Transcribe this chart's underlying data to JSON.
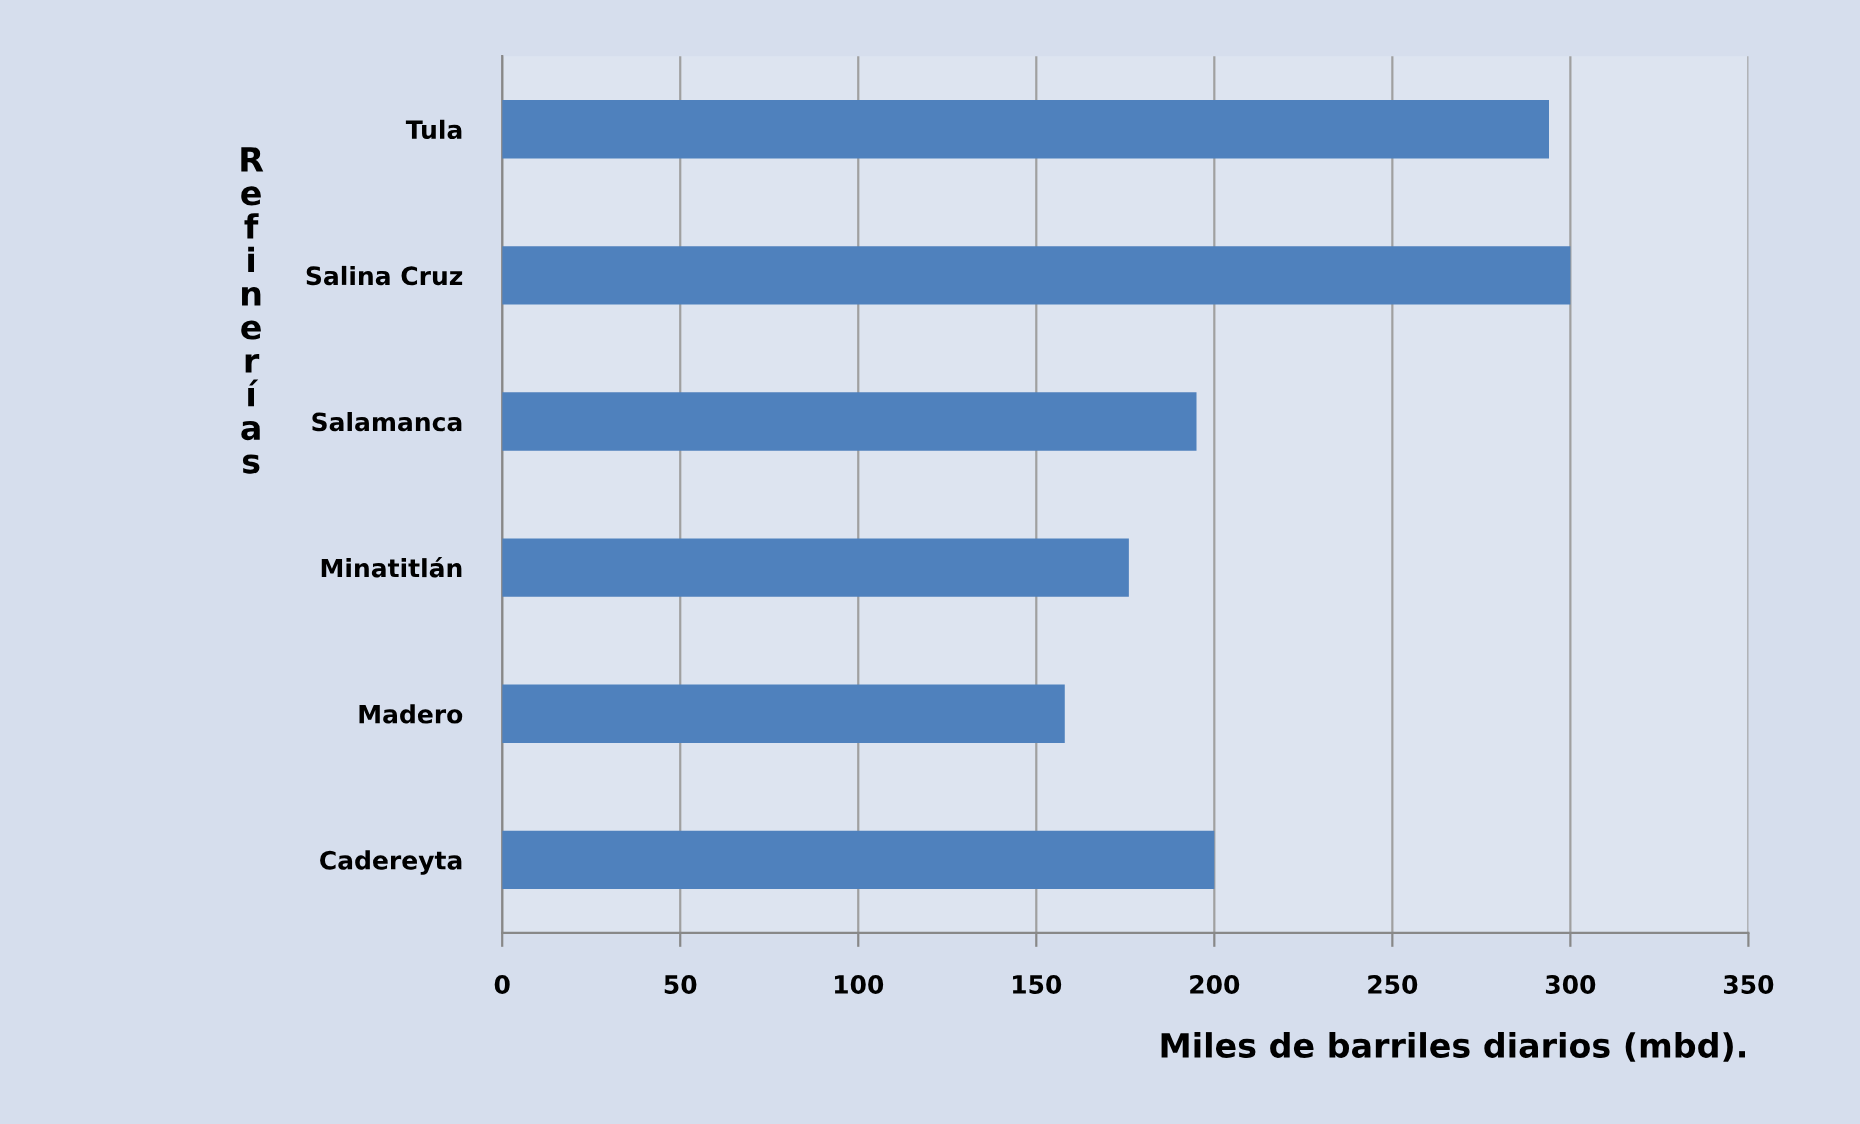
{
  "chart_data": {
    "type": "bar",
    "orientation": "horizontal",
    "ylabel": "Refinerías",
    "xlabel": "Miles de barriles diarios (mbd).",
    "categories": [
      "Tula",
      "Salina Cruz",
      "Salamanca",
      "Minatitlán",
      "Madero",
      "Cadereyta"
    ],
    "values": [
      294,
      300,
      195,
      176,
      158,
      200
    ],
    "color": "#4f81bd",
    "xlim": [
      0,
      350
    ],
    "xticks": [
      0,
      50,
      100,
      150,
      200,
      250,
      300,
      350
    ],
    "grid": "x"
  }
}
